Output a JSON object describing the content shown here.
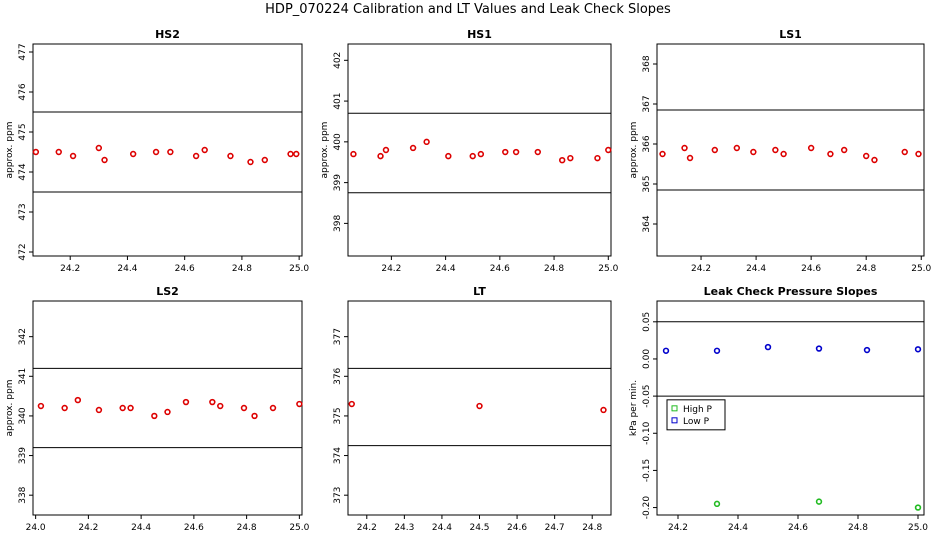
{
  "page": {
    "title": "HDP_070224  Calibration and LT Values and Leak Check Slopes"
  },
  "colors": {
    "points": "#dd0000",
    "high_p": "#22bb22",
    "low_p": "#0000cc",
    "lines": "#000000"
  },
  "chart_data": [
    {
      "id": "hs2",
      "type": "scatter",
      "title": "HS2",
      "xlabel": "",
      "ylabel": "approx. ppm",
      "xlim": [
        24.07,
        25.01
      ],
      "ylim": [
        471.9,
        477.2
      ],
      "xticks": [
        "24.2",
        "24.4",
        "24.6",
        "24.8",
        "25.0"
      ],
      "xtick_values": [
        24.2,
        24.4,
        24.6,
        24.8,
        25.0
      ],
      "yticks": [
        "472",
        "473",
        "474",
        "475",
        "476",
        "477"
      ],
      "ytick_values": [
        472,
        473,
        474,
        475,
        476,
        477
      ],
      "hlines": [
        475.5,
        473.5
      ],
      "series": [
        {
          "color": "#dd0000",
          "points": [
            [
              24.08,
              474.5
            ],
            [
              24.16,
              474.5
            ],
            [
              24.21,
              474.4
            ],
            [
              24.3,
              474.6
            ],
            [
              24.32,
              474.3
            ],
            [
              24.42,
              474.45
            ],
            [
              24.5,
              474.5
            ],
            [
              24.55,
              474.5
            ],
            [
              24.64,
              474.4
            ],
            [
              24.67,
              474.55
            ],
            [
              24.76,
              474.4
            ],
            [
              24.83,
              474.25
            ],
            [
              24.88,
              474.3
            ],
            [
              24.97,
              474.45
            ],
            [
              24.99,
              474.45
            ]
          ]
        }
      ]
    },
    {
      "id": "hs1",
      "type": "scatter",
      "title": "HS1",
      "xlabel": "",
      "ylabel": "approx. ppm",
      "xlim": [
        24.04,
        25.01
      ],
      "ylim": [
        397.2,
        402.4
      ],
      "xticks": [
        "24.2",
        "24.4",
        "24.6",
        "24.8",
        "25.0"
      ],
      "xtick_values": [
        24.2,
        24.4,
        24.6,
        24.8,
        25.0
      ],
      "yticks": [
        "398",
        "399",
        "400",
        "401",
        "402"
      ],
      "ytick_values": [
        398,
        399,
        400,
        401,
        402
      ],
      "hlines": [
        400.7,
        398.75
      ],
      "series": [
        {
          "color": "#dd0000",
          "points": [
            [
              24.06,
              399.7
            ],
            [
              24.16,
              399.65
            ],
            [
              24.18,
              399.8
            ],
            [
              24.28,
              399.85
            ],
            [
              24.33,
              400.0
            ],
            [
              24.41,
              399.65
            ],
            [
              24.5,
              399.65
            ],
            [
              24.53,
              399.7
            ],
            [
              24.62,
              399.75
            ],
            [
              24.66,
              399.75
            ],
            [
              24.74,
              399.75
            ],
            [
              24.83,
              399.55
            ],
            [
              24.86,
              399.6
            ],
            [
              24.96,
              399.6
            ],
            [
              25.0,
              399.8
            ]
          ]
        }
      ]
    },
    {
      "id": "ls1",
      "type": "scatter",
      "title": "LS1",
      "xlabel": "",
      "ylabel": "approx. ppm",
      "xlim": [
        24.04,
        25.01
      ],
      "ylim": [
        363.2,
        368.5
      ],
      "xticks": [
        "24.2",
        "24.4",
        "24.6",
        "24.8",
        "25.0"
      ],
      "xtick_values": [
        24.2,
        24.4,
        24.6,
        24.8,
        25.0
      ],
      "yticks": [
        "364",
        "365",
        "366",
        "367",
        "368"
      ],
      "ytick_values": [
        364,
        365,
        366,
        367,
        368
      ],
      "hlines": [
        366.85,
        364.85
      ],
      "series": [
        {
          "color": "#dd0000",
          "points": [
            [
              24.06,
              365.75
            ],
            [
              24.14,
              365.9
            ],
            [
              24.16,
              365.65
            ],
            [
              24.25,
              365.85
            ],
            [
              24.33,
              365.9
            ],
            [
              24.39,
              365.8
            ],
            [
              24.47,
              365.85
            ],
            [
              24.5,
              365.75
            ],
            [
              24.6,
              365.9
            ],
            [
              24.67,
              365.75
            ],
            [
              24.72,
              365.85
            ],
            [
              24.8,
              365.7
            ],
            [
              24.83,
              365.6
            ],
            [
              24.94,
              365.8
            ],
            [
              24.99,
              365.75
            ]
          ]
        }
      ]
    },
    {
      "id": "ls2",
      "type": "scatter",
      "title": "LS2",
      "xlabel": "",
      "ylabel": "approx. ppm",
      "xlim": [
        23.99,
        25.01
      ],
      "ylim": [
        337.5,
        342.9
      ],
      "xticks": [
        "24.0",
        "24.2",
        "24.4",
        "24.6",
        "24.8",
        "25.0"
      ],
      "xtick_values": [
        24.0,
        24.2,
        24.4,
        24.6,
        24.8,
        25.0
      ],
      "yticks": [
        "338",
        "339",
        "340",
        "341",
        "342"
      ],
      "ytick_values": [
        338,
        339,
        340,
        341,
        342
      ],
      "hlines": [
        341.2,
        339.2
      ],
      "series": [
        {
          "color": "#dd0000",
          "points": [
            [
              24.02,
              340.25
            ],
            [
              24.11,
              340.2
            ],
            [
              24.16,
              340.4
            ],
            [
              24.24,
              340.15
            ],
            [
              24.33,
              340.2
            ],
            [
              24.36,
              340.2
            ],
            [
              24.45,
              340.0
            ],
            [
              24.5,
              340.1
            ],
            [
              24.57,
              340.35
            ],
            [
              24.67,
              340.35
            ],
            [
              24.7,
              340.25
            ],
            [
              24.79,
              340.2
            ],
            [
              24.83,
              340.0
            ],
            [
              24.9,
              340.2
            ],
            [
              25.0,
              340.3
            ]
          ]
        }
      ]
    },
    {
      "id": "lt",
      "type": "scatter",
      "title": "LT",
      "xlabel": "",
      "ylabel": "",
      "xlim": [
        24.15,
        24.85
      ],
      "ylim": [
        372.5,
        377.9
      ],
      "xticks": [
        "24.2",
        "24.3",
        "24.4",
        "24.5",
        "24.6",
        "24.7",
        "24.8"
      ],
      "xtick_values": [
        24.2,
        24.3,
        24.4,
        24.5,
        24.6,
        24.7,
        24.8
      ],
      "yticks": [
        "373",
        "374",
        "375",
        "376",
        "377"
      ],
      "ytick_values": [
        373,
        374,
        375,
        376,
        377
      ],
      "hlines": [
        376.2,
        374.25
      ],
      "series": [
        {
          "color": "#dd0000",
          "points": [
            [
              24.16,
              375.3
            ],
            [
              24.5,
              375.25
            ],
            [
              24.83,
              375.15
            ]
          ]
        }
      ]
    },
    {
      "id": "leak",
      "type": "scatter",
      "title": "Leak Check Pressure Slopes",
      "xlabel": "",
      "ylabel": "kPa per min.",
      "xlim": [
        24.13,
        25.02
      ],
      "ylim": [
        -0.21,
        0.078
      ],
      "xticks": [
        "24.2",
        "24.4",
        "24.6",
        "24.8",
        "25.0"
      ],
      "xtick_values": [
        24.2,
        24.4,
        24.6,
        24.8,
        25.0
      ],
      "yticks": [
        "-0.20",
        "-0.15",
        "-0.10",
        "-0.05",
        "0.00",
        "0.05"
      ],
      "ytick_values": [
        -0.2,
        -0.15,
        -0.1,
        -0.05,
        0.0,
        0.05
      ],
      "hlines": [
        0.05,
        -0.05
      ],
      "legend": {
        "placement": "left",
        "entries": [
          "High P",
          "Low P"
        ]
      },
      "series": [
        {
          "name": "High P",
          "color": "#22bb22",
          "points": [
            [
              24.33,
              -0.195
            ],
            [
              24.67,
              -0.192
            ],
            [
              25.0,
              -0.2
            ]
          ]
        },
        {
          "name": "Low P",
          "color": "#0000cc",
          "points": [
            [
              24.16,
              0.011
            ],
            [
              24.33,
              0.011
            ],
            [
              24.5,
              0.016
            ],
            [
              24.67,
              0.014
            ],
            [
              24.83,
              0.012
            ],
            [
              25.0,
              0.013
            ]
          ]
        }
      ]
    }
  ]
}
